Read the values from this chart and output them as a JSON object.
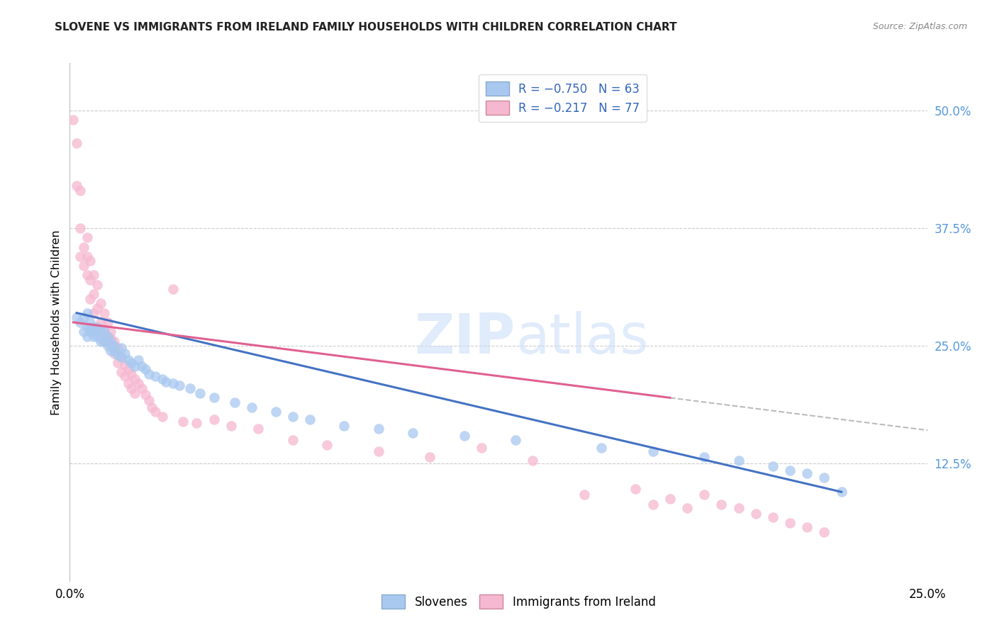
{
  "title": "SLOVENE VS IMMIGRANTS FROM IRELAND FAMILY HOUSEHOLDS WITH CHILDREN CORRELATION CHART",
  "source": "Source: ZipAtlas.com",
  "ylabel": "Family Households with Children",
  "xlim": [
    0.0,
    0.25
  ],
  "ylim": [
    0.0,
    0.55
  ],
  "xticks": [
    0.0,
    0.05,
    0.1,
    0.15,
    0.2,
    0.25
  ],
  "yticks_right": [
    0.0,
    0.125,
    0.25,
    0.375,
    0.5
  ],
  "ytick_labels_right": [
    "",
    "12.5%",
    "25.0%",
    "37.5%",
    "50.0%"
  ],
  "xtick_labels": [
    "0.0%",
    "",
    "",
    "",
    "",
    "25.0%"
  ],
  "legend_blue_label": "R = −0.750   N = 63",
  "legend_pink_label": "R = −0.217   N = 77",
  "blue_color": "#a8c8f0",
  "pink_color": "#f5b8d0",
  "line_blue_color": "#4472c4",
  "line_pink_color": "#e06090",
  "line_dash_color": "#bbbbbb",
  "watermark_zip": "ZIP",
  "watermark_atlas": "atlas",
  "slovene_x": [
    0.002,
    0.003,
    0.004,
    0.004,
    0.005,
    0.005,
    0.005,
    0.006,
    0.006,
    0.006,
    0.007,
    0.007,
    0.007,
    0.008,
    0.008,
    0.009,
    0.009,
    0.01,
    0.01,
    0.011,
    0.011,
    0.012,
    0.012,
    0.013,
    0.013,
    0.014,
    0.015,
    0.015,
    0.016,
    0.017,
    0.018,
    0.019,
    0.02,
    0.021,
    0.022,
    0.023,
    0.025,
    0.027,
    0.028,
    0.03,
    0.032,
    0.035,
    0.038,
    0.042,
    0.048,
    0.053,
    0.06,
    0.065,
    0.07,
    0.08,
    0.09,
    0.1,
    0.115,
    0.13,
    0.155,
    0.17,
    0.185,
    0.195,
    0.205,
    0.21,
    0.215,
    0.22,
    0.225
  ],
  "slovene_y": [
    0.28,
    0.275,
    0.28,
    0.265,
    0.285,
    0.27,
    0.26,
    0.275,
    0.265,
    0.27,
    0.27,
    0.26,
    0.265,
    0.27,
    0.26,
    0.265,
    0.255,
    0.265,
    0.255,
    0.26,
    0.25,
    0.255,
    0.245,
    0.25,
    0.245,
    0.24,
    0.248,
    0.238,
    0.242,
    0.235,
    0.232,
    0.228,
    0.235,
    0.228,
    0.225,
    0.22,
    0.218,
    0.215,
    0.212,
    0.21,
    0.208,
    0.205,
    0.2,
    0.195,
    0.19,
    0.185,
    0.18,
    0.175,
    0.172,
    0.165,
    0.162,
    0.158,
    0.155,
    0.15,
    0.142,
    0.138,
    0.132,
    0.128,
    0.122,
    0.118,
    0.115,
    0.11,
    0.095
  ],
  "ireland_x": [
    0.001,
    0.002,
    0.002,
    0.003,
    0.003,
    0.003,
    0.004,
    0.004,
    0.005,
    0.005,
    0.005,
    0.006,
    0.006,
    0.006,
    0.007,
    0.007,
    0.007,
    0.008,
    0.008,
    0.008,
    0.009,
    0.009,
    0.009,
    0.01,
    0.01,
    0.01,
    0.011,
    0.011,
    0.012,
    0.012,
    0.012,
    0.013,
    0.013,
    0.014,
    0.014,
    0.015,
    0.015,
    0.016,
    0.016,
    0.017,
    0.017,
    0.018,
    0.018,
    0.019,
    0.019,
    0.02,
    0.021,
    0.022,
    0.023,
    0.024,
    0.025,
    0.027,
    0.03,
    0.033,
    0.037,
    0.042,
    0.047,
    0.055,
    0.065,
    0.075,
    0.09,
    0.105,
    0.12,
    0.135,
    0.15,
    0.165,
    0.17,
    0.175,
    0.18,
    0.185,
    0.19,
    0.195,
    0.2,
    0.205,
    0.21,
    0.215,
    0.22
  ],
  "ireland_y": [
    0.49,
    0.465,
    0.42,
    0.415,
    0.375,
    0.345,
    0.355,
    0.335,
    0.365,
    0.345,
    0.325,
    0.34,
    0.32,
    0.3,
    0.325,
    0.305,
    0.285,
    0.315,
    0.29,
    0.27,
    0.295,
    0.275,
    0.258,
    0.285,
    0.268,
    0.255,
    0.275,
    0.26,
    0.265,
    0.25,
    0.258,
    0.255,
    0.242,
    0.248,
    0.232,
    0.238,
    0.222,
    0.23,
    0.218,
    0.225,
    0.21,
    0.22,
    0.205,
    0.215,
    0.2,
    0.21,
    0.205,
    0.198,
    0.192,
    0.185,
    0.18,
    0.175,
    0.31,
    0.17,
    0.168,
    0.172,
    0.165,
    0.162,
    0.15,
    0.145,
    0.138,
    0.132,
    0.142,
    0.128,
    0.092,
    0.098,
    0.082,
    0.088,
    0.078,
    0.092,
    0.082,
    0.078,
    0.072,
    0.068,
    0.062,
    0.058,
    0.052
  ]
}
